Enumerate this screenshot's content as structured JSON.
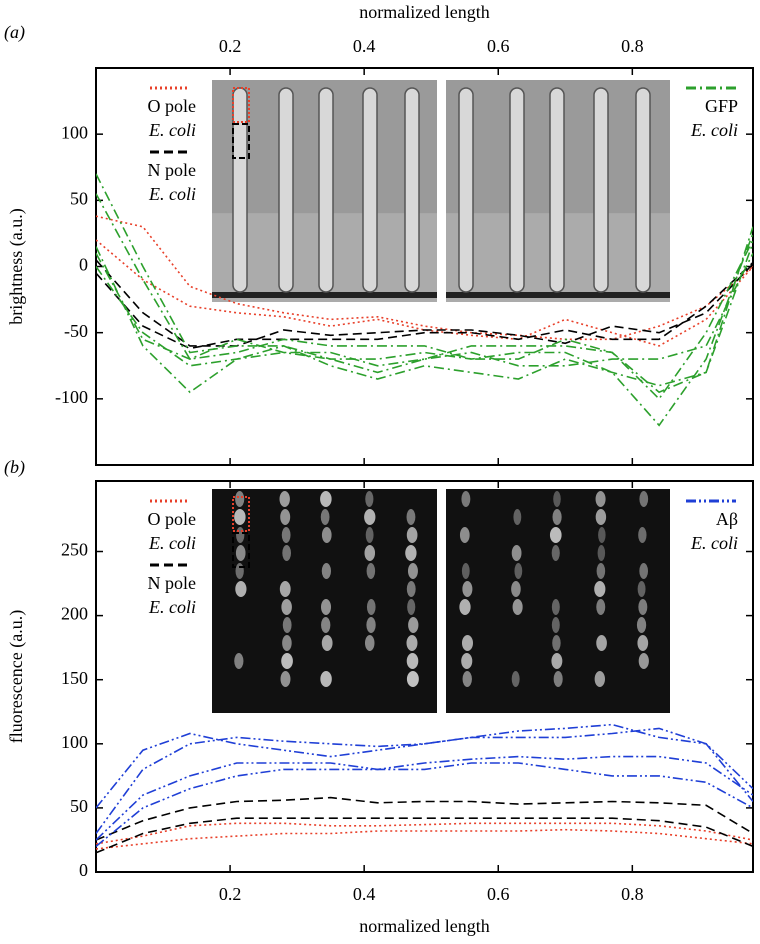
{
  "chart_data": [
    {
      "type": "line",
      "panel": "(a)",
      "xlabel": "normalized length",
      "xaxis": "top",
      "ylabel": "brightness (a.u.)",
      "x": [
        0,
        0.07,
        0.14,
        0.21,
        0.28,
        0.35,
        0.42,
        0.49,
        0.56,
        0.63,
        0.7,
        0.77,
        0.84,
        0.91,
        0.98
      ],
      "xlim": [
        0,
        0.98
      ],
      "xticks": [
        0.2,
        0.4,
        0.6,
        0.8
      ],
      "ylim": [
        -150,
        150
      ],
      "yticks": [
        -100,
        -50,
        0,
        50,
        100
      ],
      "inset": "bright",
      "series": [
        {
          "name": [
            "O pole",
            "E. coli"
          ],
          "color": "#e8402a",
          "dash": "dotted",
          "legend": "left",
          "values": [
            [
              38,
              30,
              -15,
              -28,
              -35,
              -40,
              -38,
              -45,
              -50,
              -52,
              -55,
              -55,
              -45,
              -30,
              0
            ],
            [
              20,
              -10,
              -30,
              -35,
              -38,
              -45,
              -40,
              -48,
              -52,
              -55,
              -40,
              -50,
              -60,
              -40,
              0
            ]
          ]
        },
        {
          "name": [
            "N pole",
            "E. coli"
          ],
          "color": "#000000",
          "dash": "dashed",
          "legend": "left",
          "values": [
            [
              5,
              -35,
              -60,
              -60,
              -48,
              -52,
              -50,
              -48,
              -48,
              -52,
              -58,
              -45,
              -50,
              -35,
              2
            ],
            [
              -5,
              -45,
              -62,
              -55,
              -55,
              -55,
              -55,
              -50,
              -50,
              -55,
              -48,
              -55,
              -55,
              -30,
              3
            ]
          ]
        },
        {
          "name": [
            "GFP",
            "E. coli"
          ],
          "color": "#2ca02c",
          "dash": "dash-dot",
          "legend": "right",
          "values": [
            [
              70,
              0,
              -65,
              -60,
              -60,
              -70,
              -70,
              -65,
              -70,
              -65,
              -65,
              -80,
              -120,
              -70,
              25
            ],
            [
              55,
              -10,
              -70,
              -65,
              -55,
              -60,
              -60,
              -60,
              -70,
              -70,
              -55,
              -65,
              -95,
              -80,
              30
            ],
            [
              15,
              -60,
              -95,
              -70,
              -60,
              -75,
              -85,
              -75,
              -80,
              -85,
              -70,
              -80,
              -90,
              -80,
              18
            ],
            [
              0,
              -50,
              -75,
              -70,
              -65,
              -65,
              -75,
              -70,
              -60,
              -60,
              -60,
              -65,
              -100,
              -50,
              20
            ],
            [
              10,
              -55,
              -70,
              -55,
              -65,
              -70,
              -80,
              -70,
              -65,
              -75,
              -75,
              -70,
              -70,
              -60,
              10
            ]
          ]
        }
      ]
    },
    {
      "type": "line",
      "panel": "(b)",
      "xlabel": "normalized length",
      "xaxis": "bottom",
      "ylabel": "fluorescence (a.u.)",
      "x": [
        0,
        0.07,
        0.14,
        0.21,
        0.28,
        0.35,
        0.42,
        0.49,
        0.56,
        0.63,
        0.7,
        0.77,
        0.84,
        0.91,
        0.98
      ],
      "xlim": [
        0,
        0.98
      ],
      "xticks": [
        0.2,
        0.4,
        0.6,
        0.8
      ],
      "ylim": [
        0,
        305
      ],
      "yticks": [
        0,
        50,
        100,
        150,
        200,
        250
      ],
      "inset": "dark",
      "series": [
        {
          "name": [
            "O pole",
            "E. coli"
          ],
          "color": "#e8402a",
          "dash": "dotted",
          "legend": "left",
          "values": [
            [
              22,
              28,
              36,
              38,
              38,
              36,
              36,
              37,
              38,
              38,
              38,
              38,
              36,
              32,
              25
            ],
            [
              18,
              22,
              26,
              28,
              30,
              30,
              32,
              32,
              32,
              32,
              33,
              32,
              30,
              26,
              22
            ]
          ]
        },
        {
          "name": [
            "N pole",
            "E. coli"
          ],
          "color": "#000000",
          "dash": "dashed",
          "legend": "left",
          "values": [
            [
              25,
              40,
              50,
              55,
              56,
              58,
              54,
              55,
              55,
              53,
              54,
              55,
              54,
              52,
              30
            ],
            [
              15,
              30,
              38,
              42,
              42,
              42,
              42,
              42,
              42,
              42,
              42,
              42,
              40,
              35,
              20
            ]
          ]
        },
        {
          "name": [
            "Aβ",
            "E. coli"
          ],
          "color": "#1f3fd6",
          "dash": "dash-dot-dot",
          "legend": "right",
          "values": [
            [
              50,
              95,
              108,
              100,
              95,
              90,
              95,
              100,
              105,
              110,
              112,
              115,
              105,
              100,
              55
            ],
            [
              30,
              80,
              100,
              105,
              102,
              100,
              98,
              100,
              105,
              105,
              105,
              108,
              112,
              100,
              65
            ],
            [
              25,
              60,
              75,
              85,
              85,
              85,
              80,
              85,
              88,
              90,
              88,
              90,
              90,
              85,
              60
            ],
            [
              20,
              50,
              65,
              75,
              80,
              80,
              80,
              80,
              85,
              85,
              80,
              75,
              75,
              70,
              50
            ]
          ]
        }
      ]
    }
  ]
}
